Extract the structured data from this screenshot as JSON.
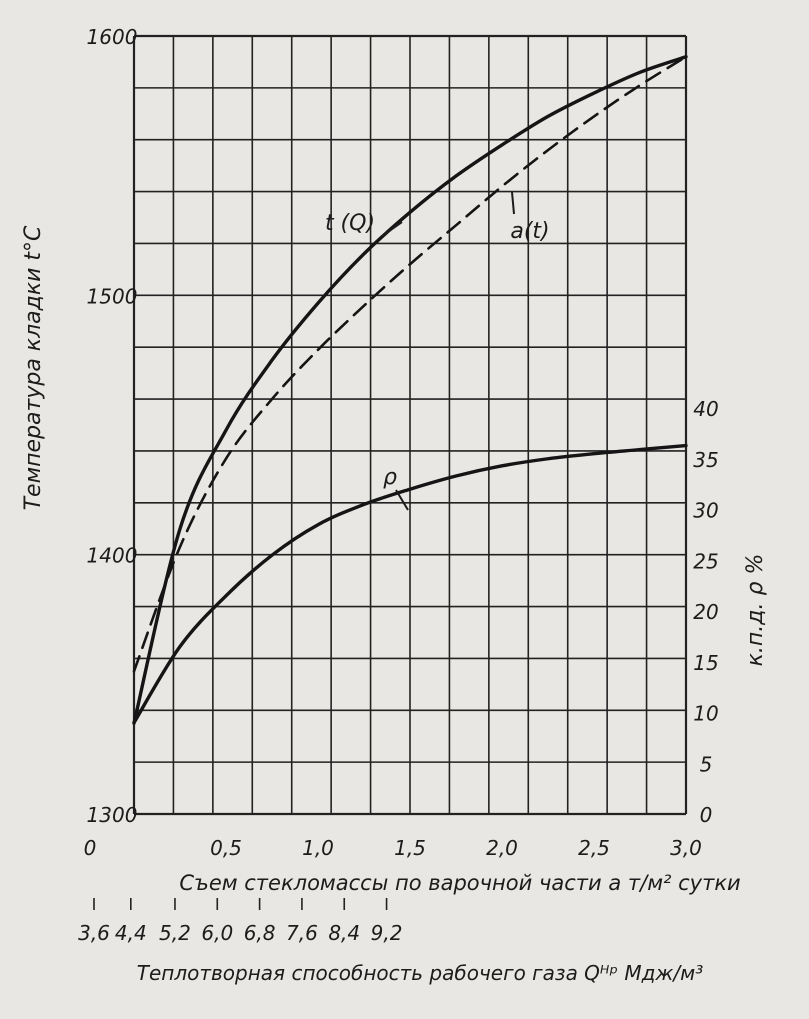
{
  "chart_data": {
    "type": "line",
    "axes": {
      "x_bottom": {
        "label": "Съем стекломассы по варочной части  a  т/м² сутки",
        "ticks": [
          "0",
          "0,5",
          "1,0",
          "1,5",
          "2,0",
          "2,5",
          "3,0"
        ],
        "range": [
          0,
          3.0
        ]
      },
      "x_secondary": {
        "label": "Теплотворная способность рабочего газа  Qᴴᵖ  Мдж/м³",
        "ticks": [
          "3,6",
          "4,4",
          "5,2",
          "6,0",
          "6,8",
          "7,6",
          "8,4",
          "9,2"
        ],
        "tick_positions_a": [
          0.0,
          0.2,
          0.44,
          0.67,
          0.9,
          1.13,
          1.36,
          1.59
        ]
      },
      "y_left": {
        "label": "Температура кладки t°C",
        "ticks": [
          "1300",
          "1400",
          "1500",
          "1600"
        ],
        "range": [
          1300,
          1600
        ]
      },
      "y_right": {
        "label": "к.п.д. ρ %",
        "ticks": [
          "0",
          "5",
          "10",
          "15",
          "20",
          "25",
          "30",
          "35",
          "40"
        ],
        "range": [
          0,
          40
        ]
      }
    },
    "grid": true,
    "series": [
      {
        "name": "t (Q)",
        "axis": "y_left",
        "style": "solid",
        "x": [
          0.0,
          0.25,
          0.5,
          0.75,
          1.0,
          1.25,
          1.5,
          1.75,
          2.0,
          2.25,
          2.5,
          2.75,
          3.0
        ],
        "y": [
          1335,
          1410,
          1448,
          1475,
          1497,
          1516,
          1532,
          1546,
          1558,
          1569,
          1578,
          1586,
          1592
        ]
      },
      {
        "name": "a(t)",
        "axis": "y_left",
        "style": "dashed",
        "x": [
          0.0,
          0.25,
          0.5,
          0.75,
          1.0,
          1.25,
          1.5,
          1.75,
          2.0,
          2.25,
          2.5,
          2.75,
          3.0
        ],
        "y": [
          1355,
          1403,
          1437,
          1460,
          1479,
          1496,
          1512,
          1527,
          1542,
          1556,
          1569,
          1581,
          1592
        ]
      },
      {
        "name": "ρ",
        "axis": "y_right",
        "style": "solid",
        "x": [
          0.0,
          0.25,
          0.5,
          0.75,
          1.0,
          1.25,
          1.5,
          1.75,
          2.0,
          2.25,
          2.5,
          2.75,
          3.0
        ],
        "y": [
          9.0,
          16.5,
          21.5,
          25.5,
          28.5,
          30.5,
          32.0,
          33.3,
          34.3,
          35.0,
          35.5,
          35.9,
          36.3
        ]
      }
    ],
    "annotations": [
      "t (Q)",
      "a(t)",
      "ρ"
    ]
  }
}
